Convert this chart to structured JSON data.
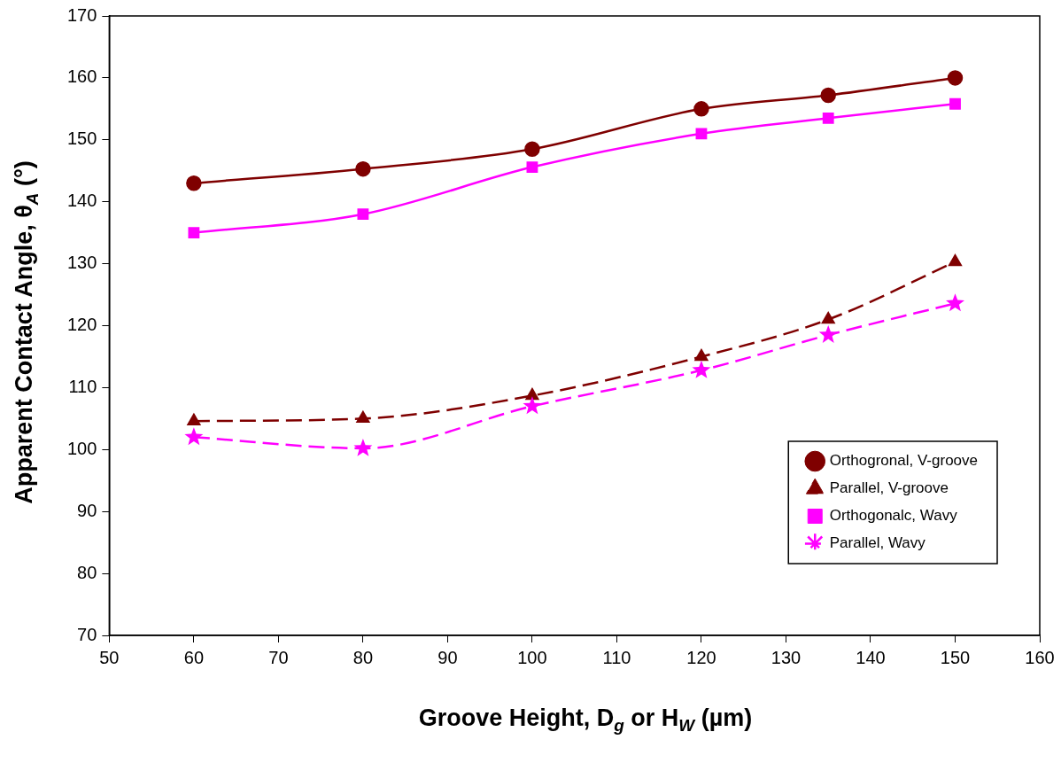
{
  "chart_data": {
    "type": "line",
    "xlabel": "Groove Height, D$_{g}$ or H$_{W}$ (µm)",
    "ylabel": "Apparent Contact Angle, θ$_{A}$ (°)",
    "x": [
      60,
      80,
      100,
      120,
      135,
      150
    ],
    "series": [
      {
        "name": "Orthogronal, V-groove",
        "color": "#7f0000",
        "marker": "circle",
        "line_style": "solid",
        "values": [
          143,
          145.3,
          148.5,
          155,
          157.2,
          160
        ]
      },
      {
        "name": "Parallel, V-groove",
        "color": "#7f0000",
        "marker": "triangle",
        "line_style": "dashed",
        "values": [
          104.6,
          105,
          108.7,
          115,
          121,
          130.3
        ]
      },
      {
        "name": "Orthogonalc, Wavy",
        "color": "#ff00ff",
        "marker": "square",
        "line_style": "solid",
        "values": [
          135,
          138,
          145.6,
          151,
          153.5,
          155.8
        ]
      },
      {
        "name": "Parallel, Wavy",
        "color": "#ff00ff",
        "marker": "star",
        "line_style": "dashed",
        "values": [
          102,
          100.2,
          107,
          112.8,
          118.5,
          123.6
        ]
      }
    ],
    "xlim": [
      50,
      160
    ],
    "xticks": [
      50,
      60,
      70,
      80,
      90,
      100,
      110,
      120,
      130,
      140,
      150,
      160
    ],
    "ylim": [
      70,
      170
    ],
    "yticks": [
      70,
      80,
      90,
      100,
      110,
      120,
      130,
      140,
      150,
      160,
      170
    ],
    "grid": false,
    "legend": "bottom right"
  }
}
